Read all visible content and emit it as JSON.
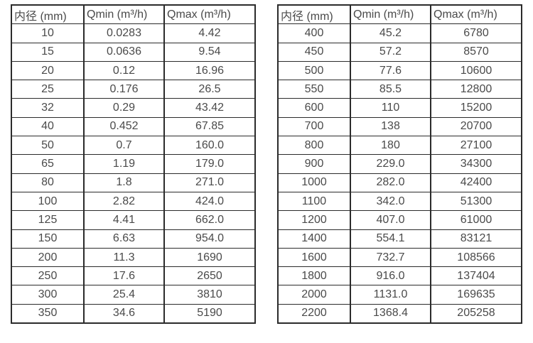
{
  "chart_data": [
    {
      "type": "table",
      "name": "flow-rate-spec-small-diameters",
      "headers": [
        "内径 (mm)",
        "Qmin (m³/h)",
        "Qmax (m³/h)"
      ],
      "rows": [
        [
          "10",
          "0.0283",
          "4.42"
        ],
        [
          "15",
          "0.0636",
          "9.54"
        ],
        [
          "20",
          "0.12",
          "16.96"
        ],
        [
          "25",
          "0.176",
          "26.5"
        ],
        [
          "32",
          "0.29",
          "43.42"
        ],
        [
          "40",
          "0.452",
          "67.85"
        ],
        [
          "50",
          "0.7",
          "160.0"
        ],
        [
          "65",
          "1.19",
          "179.0"
        ],
        [
          "80",
          "1.8",
          "271.0"
        ],
        [
          "100",
          "2.82",
          "424.0"
        ],
        [
          "125",
          "4.41",
          "662.0"
        ],
        [
          "150",
          "6.63",
          "954.0"
        ],
        [
          "200",
          "11.3",
          "1690"
        ],
        [
          "250",
          "17.6",
          "2650"
        ],
        [
          "300",
          "25.4",
          "3810"
        ],
        [
          "350",
          "34.6",
          "5190"
        ]
      ]
    },
    {
      "type": "table",
      "name": "flow-rate-spec-large-diameters",
      "headers": [
        "内径 (mm)",
        "Qmin (m³/h)",
        "Qmax (m³/h)"
      ],
      "rows": [
        [
          "400",
          "45.2",
          "6780"
        ],
        [
          "450",
          "57.2",
          "8570"
        ],
        [
          "500",
          "77.6",
          "10600"
        ],
        [
          "550",
          "85.5",
          "12800"
        ],
        [
          "600",
          "110",
          "15200"
        ],
        [
          "700",
          "138",
          "20700"
        ],
        [
          "800",
          "180",
          "27100"
        ],
        [
          "900",
          "229.0",
          "34300"
        ],
        [
          "1000",
          "282.0",
          "42400"
        ],
        [
          "1100",
          "342.0",
          "51300"
        ],
        [
          "1200",
          "407.0",
          "61000"
        ],
        [
          "1400",
          "554.1",
          "83121"
        ],
        [
          "1600",
          "732.7",
          "108566"
        ],
        [
          "1800",
          "916.0",
          "137404"
        ],
        [
          "2000",
          "1131.0",
          "169635"
        ],
        [
          "2200",
          "1368.4",
          "205258"
        ]
      ]
    }
  ],
  "colors": {
    "border": "#2b2b2b",
    "text": "#4a4a4a",
    "background": "#ffffff"
  }
}
